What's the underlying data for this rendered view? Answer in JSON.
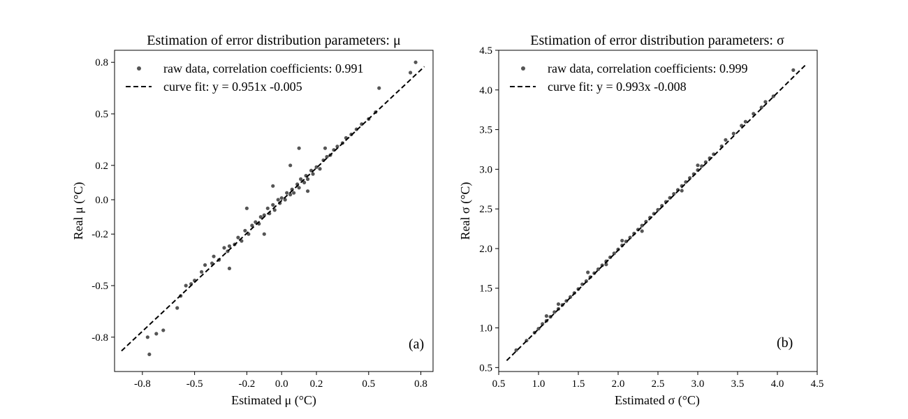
{
  "chart_data": [
    {
      "type": "scatter",
      "title": "Estimation of error distribution parameters: μ",
      "xlabel": "Estimated μ (°C)",
      "ylabel": "Real μ (°C)",
      "xlim": [
        -0.96,
        0.87
      ],
      "ylim": [
        -1.0,
        0.87
      ],
      "xticks": [
        -0.8,
        -0.5,
        -0.2,
        0.0,
        0.2,
        0.5,
        0.8
      ],
      "xtick_labels": [
        "-0.8",
        "-0.5",
        "-0.2",
        "0.0",
        "0.2",
        "0.5",
        "0.8"
      ],
      "yticks": [
        -0.8,
        -0.5,
        -0.2,
        0.0,
        0.2,
        0.5,
        0.8
      ],
      "ytick_labels": [
        "-0.8",
        "-0.5",
        "-0.2",
        "0.0",
        "0.2",
        "0.5",
        "0.8"
      ],
      "panel_label": "(a)",
      "legend": {
        "location": "top-left",
        "scatter_label": "raw data, correlation coefficients: 0.991",
        "line_label": "curve fit: y = 0.951x -0.005"
      },
      "fit": {
        "slope": 0.951,
        "intercept": -0.005,
        "x_range": [
          -0.92,
          0.82
        ]
      },
      "point_color": "#555555",
      "points": [
        [
          -0.76,
          -0.9
        ],
        [
          -0.77,
          -0.8
        ],
        [
          -0.72,
          -0.78
        ],
        [
          -0.68,
          -0.76
        ],
        [
          -0.6,
          -0.63
        ],
        [
          -0.58,
          -0.56
        ],
        [
          -0.55,
          -0.5
        ],
        [
          -0.52,
          -0.49
        ],
        [
          -0.5,
          -0.47
        ],
        [
          -0.46,
          -0.42
        ],
        [
          -0.44,
          -0.38
        ],
        [
          -0.4,
          -0.37
        ],
        [
          -0.39,
          -0.33
        ],
        [
          -0.36,
          -0.35
        ],
        [
          -0.33,
          -0.28
        ],
        [
          -0.31,
          -0.3
        ],
        [
          -0.3,
          -0.27
        ],
        [
          -0.27,
          -0.26
        ],
        [
          -0.25,
          -0.22
        ],
        [
          -0.23,
          -0.24
        ],
        [
          -0.21,
          -0.18
        ],
        [
          -0.19,
          -0.2
        ],
        [
          -0.17,
          -0.15
        ],
        [
          -0.15,
          -0.13
        ],
        [
          -0.13,
          -0.14
        ],
        [
          -0.12,
          -0.1
        ],
        [
          -0.1,
          -0.09
        ],
        [
          -0.08,
          -0.05
        ],
        [
          -0.07,
          -0.08
        ],
        [
          -0.05,
          -0.03
        ],
        [
          -0.04,
          -0.06
        ],
        [
          -0.02,
          0.0
        ],
        [
          -0.01,
          -0.02
        ],
        [
          0.0,
          0.01
        ],
        [
          0.02,
          0.0
        ],
        [
          0.03,
          0.04
        ],
        [
          0.05,
          0.03
        ],
        [
          0.06,
          0.06
        ],
        [
          0.07,
          0.04
        ],
        [
          0.09,
          0.09
        ],
        [
          0.1,
          0.07
        ],
        [
          0.11,
          0.12
        ],
        [
          0.13,
          0.1
        ],
        [
          0.14,
          0.14
        ],
        [
          0.15,
          0.12
        ],
        [
          0.17,
          0.17
        ],
        [
          0.18,
          0.15
        ],
        [
          0.2,
          0.19
        ],
        [
          0.22,
          0.18
        ],
        [
          0.24,
          0.23
        ],
        [
          0.26,
          0.25
        ],
        [
          0.28,
          0.26
        ],
        [
          0.3,
          0.29
        ],
        [
          0.32,
          0.31
        ],
        [
          0.35,
          0.33
        ],
        [
          0.37,
          0.36
        ],
        [
          0.4,
          0.38
        ],
        [
          0.43,
          0.41
        ],
        [
          0.46,
          0.44
        ],
        [
          0.5,
          0.47
        ],
        [
          0.54,
          0.51
        ],
        [
          0.56,
          0.65
        ],
        [
          0.77,
          0.8
        ],
        [
          0.74,
          0.74
        ],
        [
          0.1,
          0.3
        ],
        [
          -0.2,
          -0.05
        ],
        [
          0.05,
          0.2
        ],
        [
          -0.1,
          -0.2
        ],
        [
          0.15,
          0.05
        ],
        [
          -0.3,
          -0.4
        ],
        [
          0.25,
          0.3
        ],
        [
          -0.05,
          0.08
        ]
      ]
    },
    {
      "type": "scatter",
      "title": "Estimation of error distribution parameters: σ",
      "xlabel": "Estimated σ (°C)",
      "ylabel": "Real σ (°C)",
      "xlim": [
        0.5,
        4.5
      ],
      "ylim": [
        0.45,
        4.5
      ],
      "xticks": [
        0.5,
        1.0,
        1.5,
        2.0,
        2.5,
        3.0,
        3.5,
        4.0,
        4.5
      ],
      "xtick_labels": [
        "0.5",
        "1.0",
        "1.5",
        "2.0",
        "2.5",
        "3.0",
        "3.5",
        "4.0",
        "4.5"
      ],
      "yticks": [
        0.5,
        1.0,
        1.5,
        2.0,
        2.5,
        3.0,
        3.5,
        4.0,
        4.5
      ],
      "ytick_labels": [
        "0.5",
        "1.0",
        "1.5",
        "2.0",
        "2.5",
        "3.0",
        "3.5",
        "4.0",
        "4.5"
      ],
      "panel_label": "(b)",
      "legend": {
        "location": "top-left",
        "scatter_label": "raw data, correlation coefficients: 0.999",
        "line_label": "curve fit: y = 0.993x -0.008"
      },
      "fit": {
        "slope": 0.993,
        "intercept": -0.008,
        "x_range": [
          0.6,
          4.35
        ]
      },
      "point_color": "#555555",
      "points": [
        [
          0.72,
          0.72
        ],
        [
          0.85,
          0.84
        ],
        [
          0.95,
          0.94
        ],
        [
          1.0,
          0.99
        ],
        [
          1.05,
          1.05
        ],
        [
          1.1,
          1.09
        ],
        [
          1.15,
          1.14
        ],
        [
          1.2,
          1.2
        ],
        [
          1.25,
          1.24
        ],
        [
          1.3,
          1.29
        ],
        [
          1.35,
          1.34
        ],
        [
          1.4,
          1.39
        ],
        [
          1.45,
          1.44
        ],
        [
          1.5,
          1.49
        ],
        [
          1.55,
          1.55
        ],
        [
          1.6,
          1.59
        ],
        [
          1.65,
          1.64
        ],
        [
          1.7,
          1.69
        ],
        [
          1.75,
          1.74
        ],
        [
          1.8,
          1.79
        ],
        [
          1.85,
          1.84
        ],
        [
          1.9,
          1.89
        ],
        [
          1.95,
          1.94
        ],
        [
          2.0,
          1.99
        ],
        [
          2.05,
          2.04
        ],
        [
          2.1,
          2.09
        ],
        [
          2.15,
          2.14
        ],
        [
          2.2,
          2.19
        ],
        [
          2.25,
          2.24
        ],
        [
          2.3,
          2.29
        ],
        [
          2.35,
          2.34
        ],
        [
          2.4,
          2.39
        ],
        [
          2.45,
          2.44
        ],
        [
          2.5,
          2.49
        ],
        [
          2.55,
          2.54
        ],
        [
          2.6,
          2.59
        ],
        [
          2.65,
          2.64
        ],
        [
          2.7,
          2.69
        ],
        [
          2.75,
          2.74
        ],
        [
          2.8,
          2.79
        ],
        [
          2.85,
          2.84
        ],
        [
          2.9,
          2.89
        ],
        [
          2.95,
          2.94
        ],
        [
          3.0,
          2.99
        ],
        [
          3.05,
          3.04
        ],
        [
          3.1,
          3.09
        ],
        [
          3.15,
          3.14
        ],
        [
          3.2,
          3.19
        ],
        [
          3.3,
          3.29
        ],
        [
          3.35,
          3.37
        ],
        [
          3.45,
          3.45
        ],
        [
          3.55,
          3.55
        ],
        [
          3.6,
          3.6
        ],
        [
          3.7,
          3.7
        ],
        [
          3.8,
          3.78
        ],
        [
          3.85,
          3.85
        ],
        [
          3.95,
          3.92
        ],
        [
          4.2,
          4.25
        ],
        [
          1.62,
          1.7
        ],
        [
          2.3,
          2.22
        ],
        [
          1.25,
          1.3
        ],
        [
          2.8,
          2.73
        ],
        [
          1.85,
          1.8
        ],
        [
          3.0,
          3.05
        ],
        [
          1.1,
          1.15
        ],
        [
          2.05,
          2.1
        ]
      ]
    }
  ]
}
